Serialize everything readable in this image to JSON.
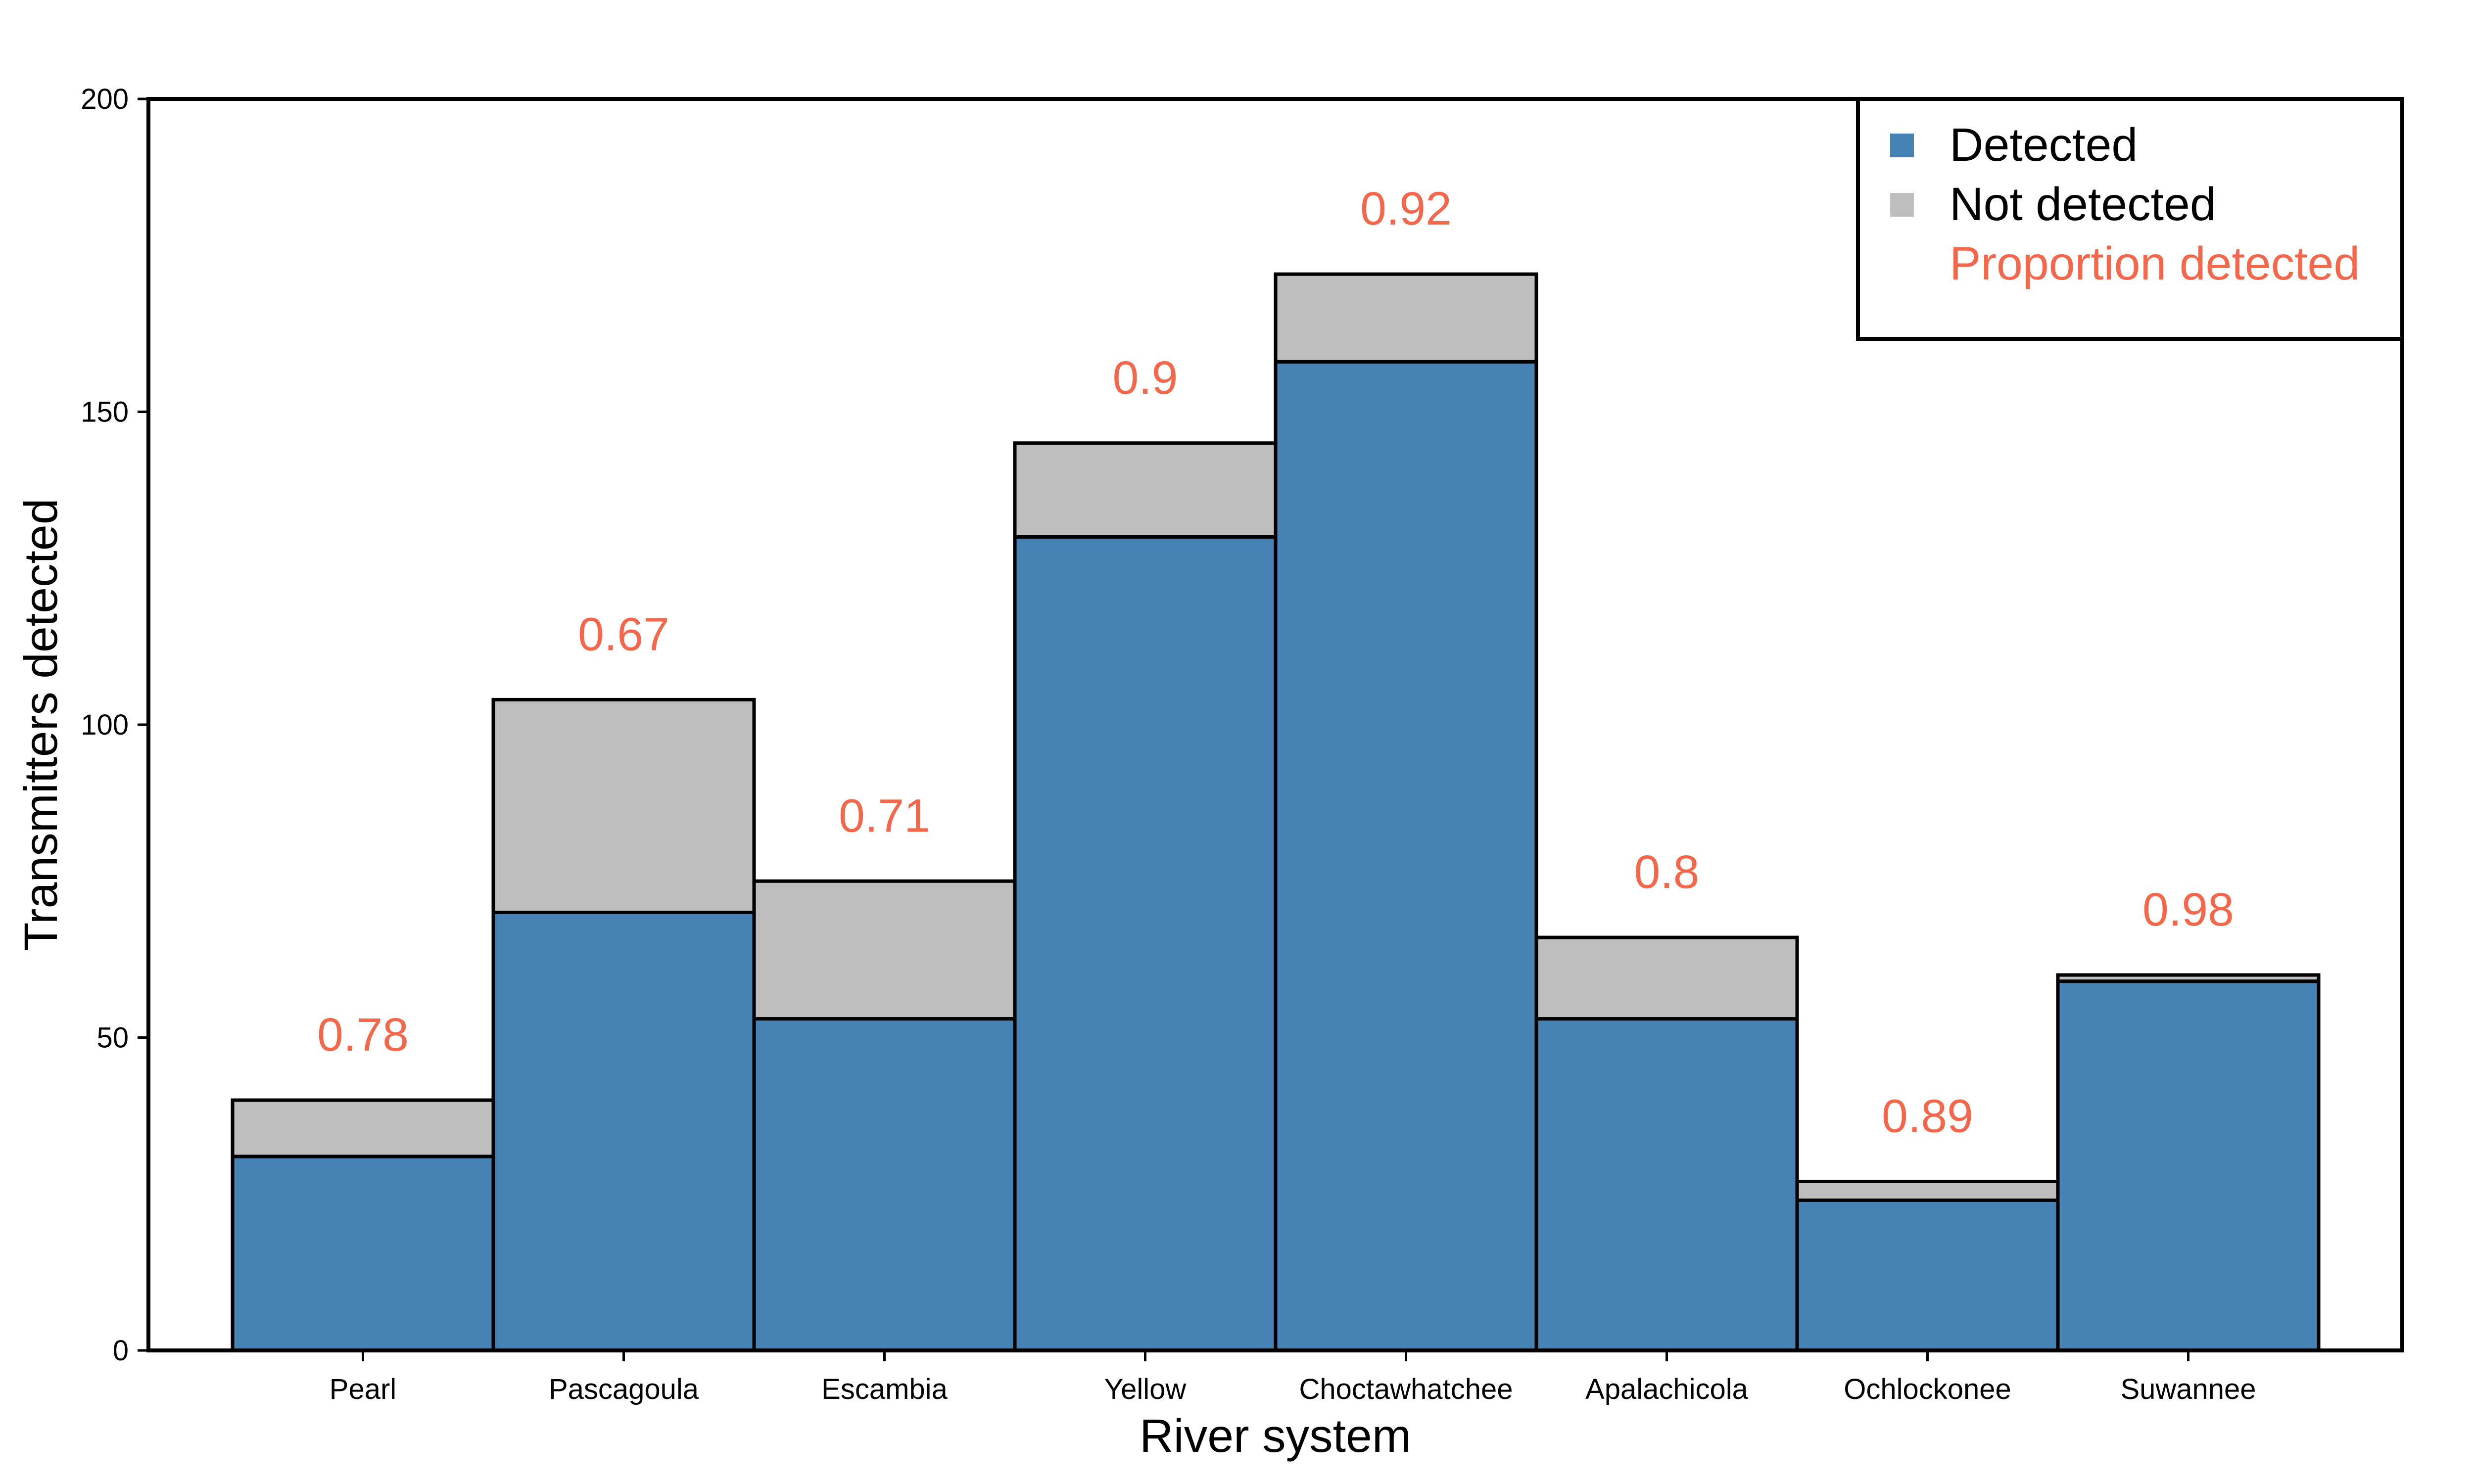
{
  "chart_data": {
    "type": "bar",
    "stacked": true,
    "xlabel": "River system",
    "ylabel": "Transmitters detected",
    "ylim": [
      0,
      200
    ],
    "yticks": [
      0,
      50,
      100,
      150,
      200
    ],
    "categories": [
      "Pearl",
      "Pascagoula",
      "Escambia",
      "Yellow",
      "Choctawhatchee",
      "Apalachicola",
      "Ochlockonee",
      "Suwannee"
    ],
    "series": [
      {
        "name": "Detected",
        "color": "#4682B4",
        "values": [
          31,
          70,
          53,
          130,
          158,
          53,
          24,
          59
        ]
      },
      {
        "name": "Not detected",
        "color": "#BEBEBE",
        "values": [
          9,
          34,
          22,
          15,
          14,
          13,
          3,
          1
        ]
      }
    ],
    "proportion_labels": [
      "0.78",
      "0.67",
      "0.71",
      "0.9",
      "0.92",
      "0.8",
      "0.89",
      "0.98"
    ],
    "proportion_color": "#F4674A",
    "legend": {
      "position": "top-right",
      "entries": [
        "Detected",
        "Not detected",
        "Proportion detected"
      ]
    },
    "grid": false
  }
}
